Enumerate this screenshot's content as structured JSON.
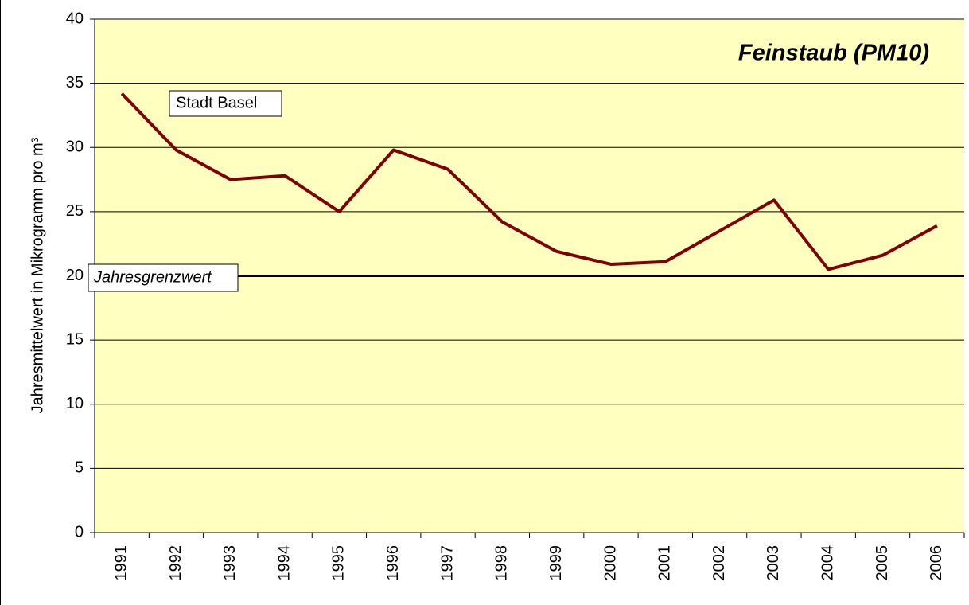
{
  "chart_data": {
    "type": "line",
    "title": "Feinstaub (PM10)",
    "y_label": "Jahresmittelwert in Mikrogramm pro m³",
    "categories": [
      "1991",
      "1992",
      "1993",
      "1994",
      "1995",
      "1996",
      "1997",
      "1998",
      "1999",
      "2000",
      "2001",
      "2002",
      "2003",
      "2004",
      "2005",
      "2006"
    ],
    "series": [
      {
        "name": "Stadt Basel",
        "color": "#800000",
        "values": [
          34.2,
          29.8,
          27.5,
          27.8,
          25.0,
          29.8,
          28.3,
          24.2,
          21.9,
          20.9,
          21.1,
          23.5,
          25.9,
          20.5,
          21.6,
          23.9
        ]
      }
    ],
    "threshold": {
      "label": "Jahresgrenzwert",
      "value": 20
    },
    "ylim": [
      0,
      40
    ],
    "yticks": [
      0,
      5,
      10,
      15,
      20,
      25,
      30,
      35,
      40
    ],
    "grid": true,
    "background": "#ffffc0"
  }
}
